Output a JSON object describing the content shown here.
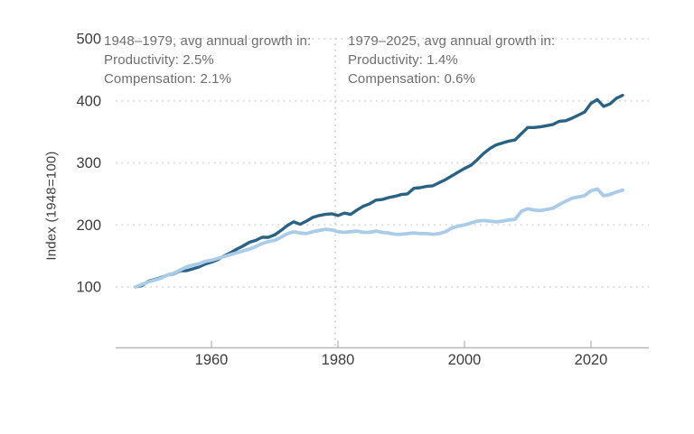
{
  "chart_data": {
    "type": "line",
    "title": "",
    "ylabel": "Index (1948=100)",
    "xlabel": "",
    "xlim": [
      1948,
      2025
    ],
    "ylim": [
      0,
      500
    ],
    "x_ticks": [
      "1960",
      "1980",
      "2000",
      "2020"
    ],
    "x_tick_years": [
      1960,
      1980,
      2000,
      2020
    ],
    "y_ticks": [
      "100",
      "200",
      "300",
      "400",
      "500"
    ],
    "y_tick_values": [
      100,
      200,
      300,
      400,
      500
    ],
    "grid": "dotted horizontal gridlines at each y tick",
    "legend_position": "none (labeled via annotations)",
    "annotation_line_x": 1979,
    "x_start_year": 1948,
    "series": [
      {
        "name": "Productivity",
        "color": "#2a6284",
        "values": [
          100,
          102,
          109,
          112,
          115,
          119,
          121,
          126,
          126,
          129,
          132,
          137,
          140,
          144,
          150,
          155,
          161,
          166,
          172,
          175,
          180,
          180,
          184,
          191,
          199,
          205,
          201,
          206,
          212,
          215,
          217,
          218,
          215,
          219,
          217,
          224,
          230,
          234,
          240,
          241,
          244,
          246,
          249,
          250,
          259,
          260,
          262,
          263,
          268,
          273,
          279,
          285,
          291,
          296,
          305,
          315,
          323,
          329,
          332,
          335,
          337,
          347,
          357,
          357,
          358,
          360,
          362,
          367,
          368,
          372,
          377,
          382,
          396,
          402,
          391,
          395,
          404,
          409
        ]
      },
      {
        "name": "Compensation",
        "color": "#a9cce9",
        "values": [
          100,
          104,
          108,
          111,
          114,
          119,
          122,
          127,
          132,
          135,
          137,
          141,
          143,
          146,
          149,
          152,
          155,
          158,
          161,
          165,
          170,
          173,
          175,
          180,
          186,
          189,
          187,
          186,
          189,
          191,
          193,
          192,
          189,
          188,
          189,
          190,
          188,
          188,
          190,
          188,
          187,
          185,
          185,
          186,
          187,
          186,
          186,
          185,
          186,
          189,
          195,
          198,
          200,
          203,
          206,
          207,
          206,
          205,
          206,
          208,
          209,
          222,
          226,
          224,
          223,
          225,
          227,
          233,
          238,
          243,
          245,
          247,
          255,
          258,
          247,
          249,
          253,
          256
        ]
      }
    ],
    "annotations": [
      {
        "line1": "1948–1979, avg annual growth in:",
        "line2": "Productivity: 2.5%",
        "line3": "Compensation: 2.1%"
      },
      {
        "line1": "1979–2025, avg annual growth in:",
        "line2": "Productivity: 1.4%",
        "line3": "Compensation: 0.6%"
      }
    ]
  },
  "colors": {
    "background": "#ffffff",
    "gridline": "#dcdcdc",
    "axis_line": "#b8b8b8",
    "tick_label": "#3d3d3d",
    "annotation_text": "#6e6e6e",
    "annotation_vline": "#d5d5d5"
  }
}
